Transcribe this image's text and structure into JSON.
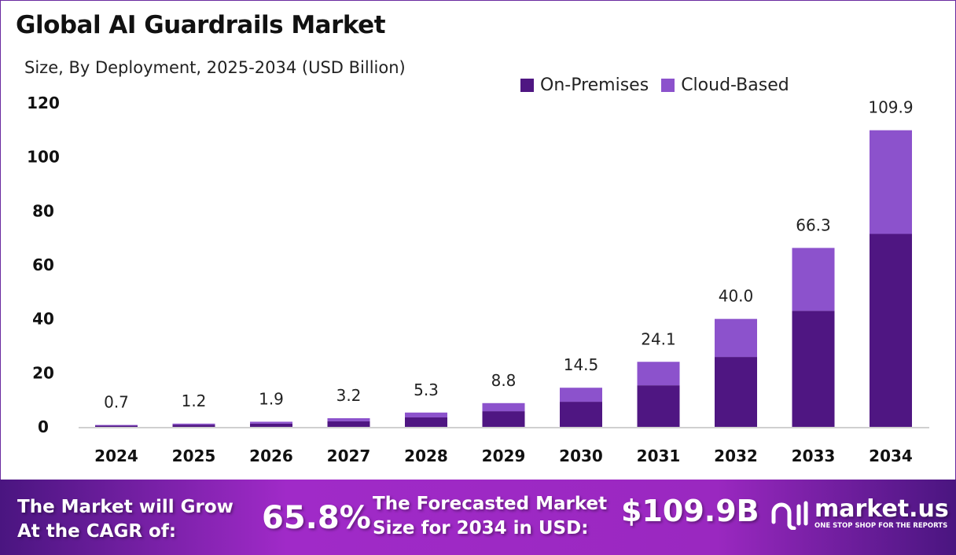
{
  "chart_data": {
    "type": "bar",
    "stacked": true,
    "title": "Global AI Guardrails Market",
    "subtitle": "Size, By Deployment, 2025-2034 (USD Billion)",
    "categories": [
      "2024",
      "2025",
      "2026",
      "2027",
      "2028",
      "2029",
      "2030",
      "2031",
      "2032",
      "2033",
      "2034"
    ],
    "series": [
      {
        "name": "On-Premises",
        "color": "#4f1682",
        "values": [
          0.45,
          0.8,
          1.2,
          2.1,
          3.5,
          5.8,
          9.3,
          15.4,
          25.9,
          43.0,
          71.5
        ]
      },
      {
        "name": "Cloud-Based",
        "color": "#8c52cc",
        "values": [
          0.25,
          0.4,
          0.7,
          1.1,
          1.8,
          3.0,
          5.2,
          8.7,
          14.1,
          23.3,
          38.4
        ]
      }
    ],
    "totals": [
      "0.7",
      "1.2",
      "1.9",
      "3.2",
      "5.3",
      "8.8",
      "14.5",
      "24.1",
      "40.0",
      "66.3",
      "109.9"
    ],
    "yticks": [
      "0",
      "20",
      "40",
      "60",
      "80",
      "100",
      "120"
    ],
    "ylim": [
      0,
      120
    ],
    "grid": false,
    "legend_position": "top-right"
  },
  "footer": {
    "cagr_label": "The Market will Grow At the CAGR of:",
    "cagr_value": "65.8%",
    "forecast_label": "The Forecasted Market Size for 2034 in USD:",
    "forecast_value": "$109.9B",
    "logo_text": "market.us",
    "logo_tagline": "ONE STOP SHOP FOR THE REPORTS"
  }
}
